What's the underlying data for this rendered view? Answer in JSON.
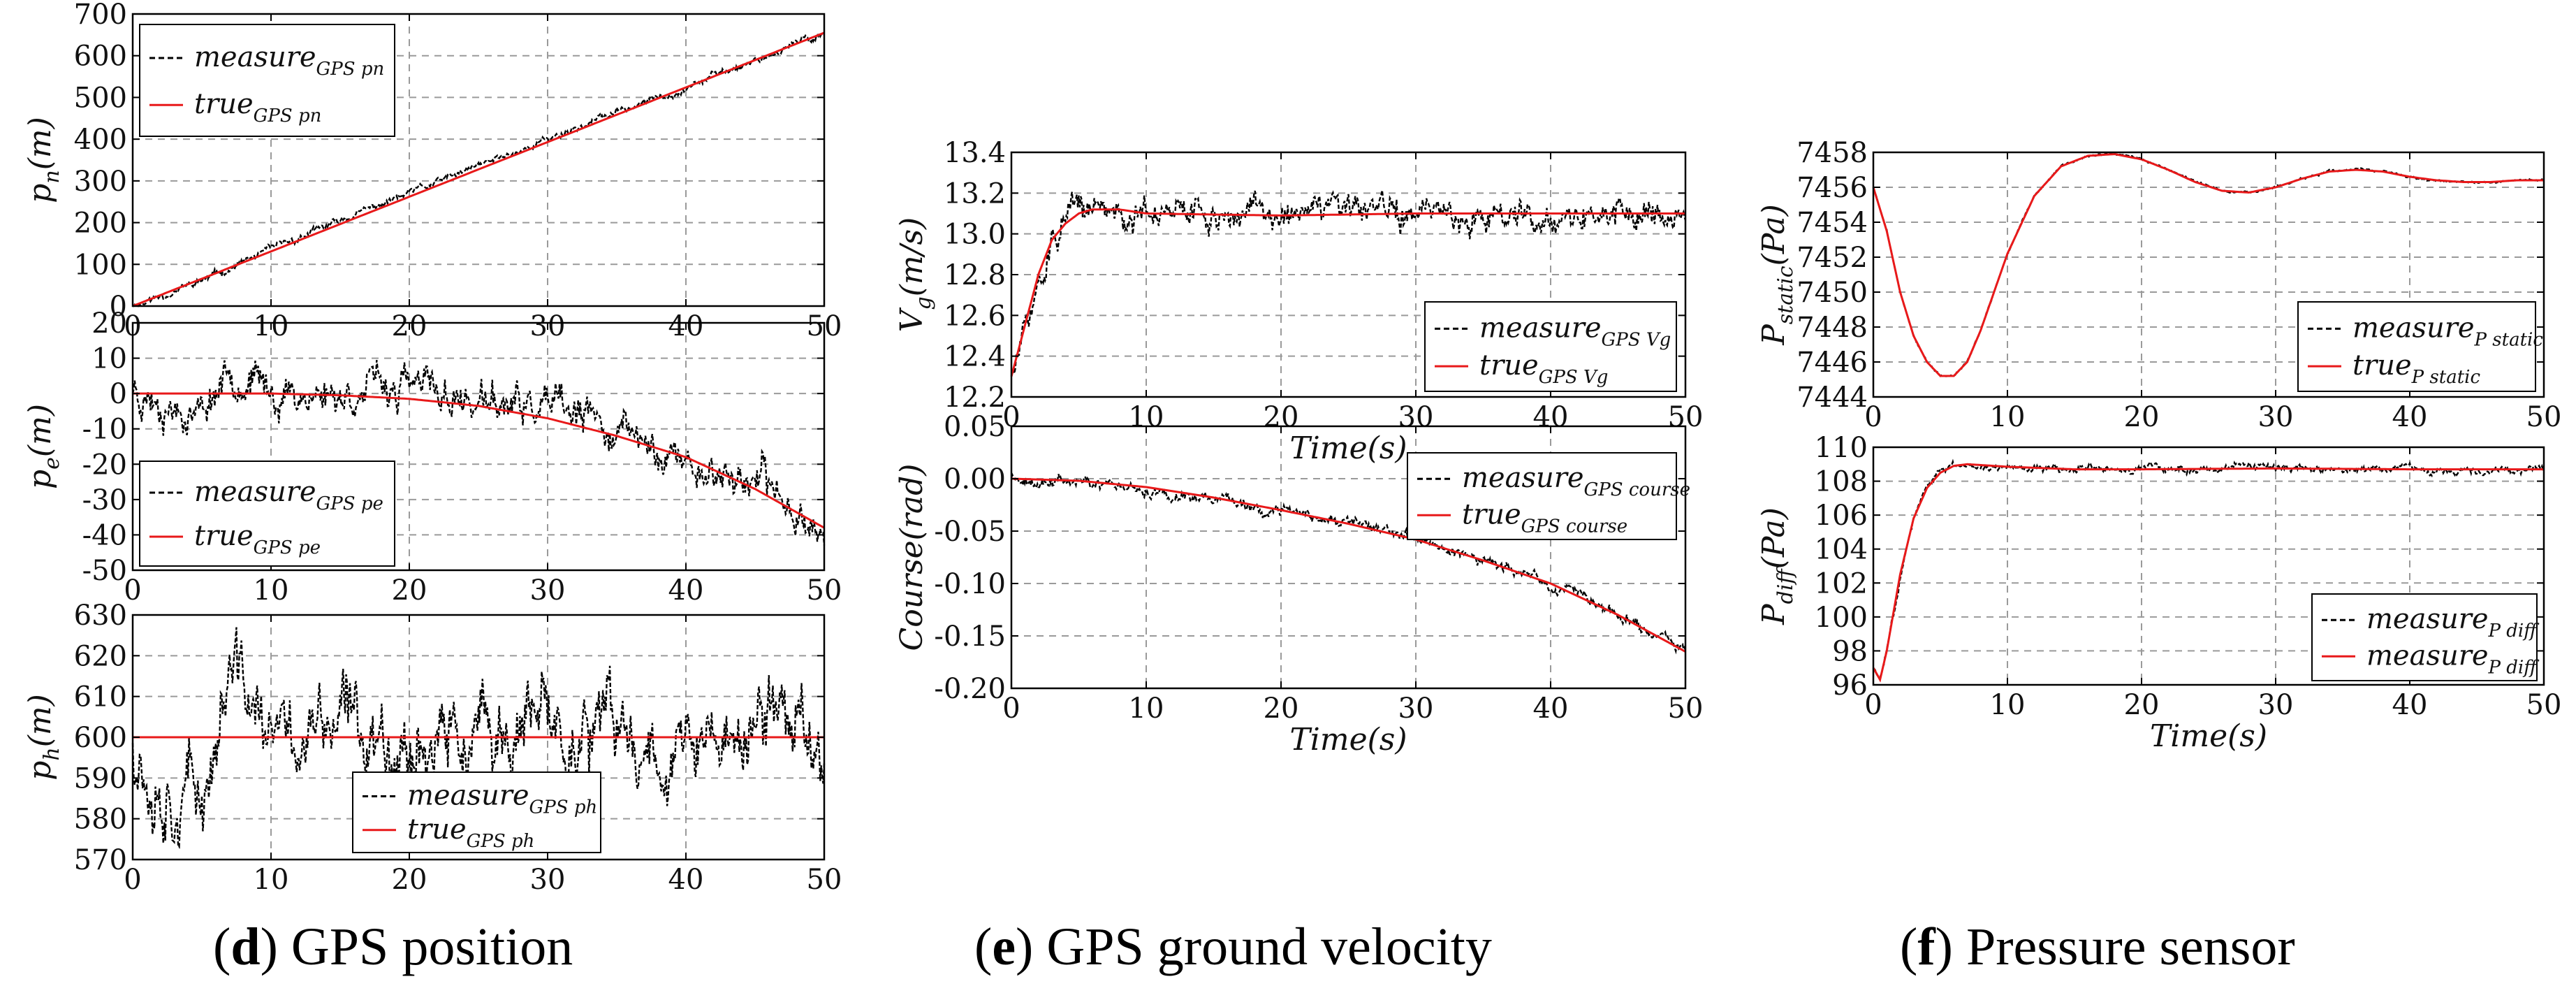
{
  "chart_data": [
    {
      "id": "pn",
      "panel": "d",
      "type": "line",
      "ylabel": "p_n(m)",
      "ylabel_main": "p",
      "ylabel_sub": "n",
      "ylabel_unit": "(m)",
      "xlabel": "",
      "xlim": [
        0,
        50
      ],
      "ylim": [
        0,
        700
      ],
      "xticks": [
        0,
        10,
        20,
        30,
        40,
        50
      ],
      "yticks": [
        0,
        100,
        200,
        300,
        400,
        500,
        600,
        700
      ],
      "grid": true,
      "legend_position": "top-left",
      "series": [
        {
          "name": "measure_GPS_pn",
          "legend_main": "measure",
          "legend_sub": "GPS_pn",
          "style": "dashed",
          "color": "#000000",
          "x": [
            0,
            5,
            10,
            15,
            20,
            25,
            30,
            35,
            40,
            45,
            50
          ],
          "values": [
            0,
            60,
            135,
            205,
            270,
            335,
            400,
            465,
            525,
            590,
            655
          ],
          "noise": 8,
          "seed": 11
        },
        {
          "name": "true_GPS_pn",
          "legend_main": "true",
          "legend_sub": "GPS_pn",
          "style": "solid",
          "color": "#e8191a",
          "x": [
            0,
            50
          ],
          "values": [
            0,
            655
          ]
        }
      ]
    },
    {
      "id": "pe",
      "panel": "d",
      "type": "line",
      "ylabel": "p_e(m)",
      "ylabel_main": "p",
      "ylabel_sub": "e",
      "ylabel_unit": "(m)",
      "xlabel": "",
      "xlim": [
        0,
        50
      ],
      "ylim": [
        -50,
        20
      ],
      "xticks": [
        0,
        10,
        20,
        30,
        40,
        50
      ],
      "yticks": [
        -50,
        -40,
        -30,
        -20,
        -10,
        0,
        10,
        20
      ],
      "grid": true,
      "legend_position": "bottom-left",
      "series": [
        {
          "name": "measure_GPS_pe",
          "legend_main": "measure",
          "legend_sub": "GPS_pe",
          "style": "dashed",
          "color": "#000000",
          "x": [
            0,
            3,
            5,
            7,
            8,
            10,
            15,
            20,
            25,
            30,
            35,
            40,
            45,
            48,
            50
          ],
          "values": [
            2,
            -3,
            -5,
            8,
            5,
            0,
            0,
            2,
            -3,
            -5,
            -10,
            -20,
            -25,
            -32,
            -40
          ],
          "noise": 5,
          "seed": 23
        },
        {
          "name": "true_GPS_pe",
          "legend_main": "true",
          "legend_sub": "GPS_pe",
          "style": "solid",
          "color": "#e8191a",
          "x": [
            0,
            5,
            10,
            15,
            20,
            25,
            30,
            35,
            40,
            45,
            50
          ],
          "values": [
            0,
            0,
            0,
            -0.5,
            -1.5,
            -3.5,
            -7,
            -12,
            -18,
            -27,
            -38
          ]
        }
      ]
    },
    {
      "id": "ph",
      "panel": "d",
      "type": "line",
      "ylabel": "p_h(m)",
      "ylabel_main": "p",
      "ylabel_sub": "h",
      "ylabel_unit": "(m)",
      "xlabel": "",
      "xlim": [
        0,
        50
      ],
      "ylim": [
        570,
        630
      ],
      "xticks": [
        0,
        10,
        20,
        30,
        40,
        50
      ],
      "yticks": [
        570,
        580,
        590,
        600,
        610,
        620,
        630
      ],
      "grid": true,
      "legend_position": "bottom-center",
      "series": [
        {
          "name": "measure_GPS_ph",
          "legend_main": "measure",
          "legend_sub": "GPS_ph",
          "style": "dashed",
          "color": "#000000",
          "x": [
            0,
            2,
            5,
            7,
            8,
            10,
            15,
            20,
            25,
            30,
            35,
            40,
            45,
            47,
            50
          ],
          "values": [
            600,
            590,
            585,
            615,
            612,
            598,
            603,
            600,
            598,
            602,
            600,
            597,
            600,
            610,
            595
          ],
          "noise": 9,
          "seed": 37
        },
        {
          "name": "true_GPS_ph",
          "legend_main": "true",
          "legend_sub": "GPS_ph",
          "style": "solid",
          "color": "#e8191a",
          "x": [
            0,
            50
          ],
          "values": [
            600,
            600
          ]
        }
      ]
    },
    {
      "id": "vg",
      "panel": "e",
      "type": "line",
      "ylabel": "V_g(m/s)",
      "ylabel_main": "V",
      "ylabel_sub": "g",
      "ylabel_unit": "(m/s)",
      "xlabel": "Time(s)",
      "xlim": [
        0,
        50
      ],
      "ylim": [
        12.2,
        13.4
      ],
      "xticks": [
        0,
        10,
        20,
        30,
        40,
        50
      ],
      "yticks": [
        12.2,
        12.4,
        12.6,
        12.8,
        13.0,
        13.2,
        13.4
      ],
      "grid": true,
      "legend_position": "bottom-right",
      "series": [
        {
          "name": "measure_GPS_Vg",
          "legend_main": "measure",
          "legend_sub": "GPS_Vg",
          "style": "dashed",
          "color": "#000000",
          "x": [
            0,
            1,
            2,
            3,
            4,
            5,
            6,
            8,
            10,
            20,
            30,
            40,
            50
          ],
          "values": [
            12.3,
            12.5,
            12.75,
            12.95,
            13.05,
            13.1,
            13.12,
            13.12,
            13.1,
            13.1,
            13.1,
            13.1,
            13.1
          ],
          "noise": 0.07,
          "seed": 51
        },
        {
          "name": "true_GPS_Vg",
          "legend_main": "true",
          "legend_sub": "GPS_Vg",
          "style": "solid",
          "color": "#e8191a",
          "x": [
            0,
            1,
            2,
            3,
            4,
            5,
            6,
            8,
            10,
            20,
            30,
            40,
            50
          ],
          "values": [
            12.3,
            12.55,
            12.8,
            12.97,
            13.05,
            13.1,
            13.12,
            13.12,
            13.1,
            13.09,
            13.1,
            13.1,
            13.1
          ]
        }
      ]
    },
    {
      "id": "course",
      "panel": "e",
      "type": "line",
      "ylabel": "Course(rad)",
      "ylabel_main": "Course",
      "ylabel_sub": "",
      "ylabel_unit": "(rad)",
      "xlabel": "Time(s)",
      "xlim": [
        0,
        50
      ],
      "ylim": [
        -0.2,
        0.05
      ],
      "xticks": [
        0,
        10,
        20,
        30,
        40,
        50
      ],
      "yticks": [
        -0.2,
        -0.15,
        -0.1,
        -0.05,
        0.0,
        0.05
      ],
      "grid": true,
      "legend_position": "top-right",
      "series": [
        {
          "name": "measure_GPS_course",
          "legend_main": "measure",
          "legend_sub": "GPS_course",
          "style": "dashed",
          "color": "#000000",
          "x": [
            0,
            5,
            10,
            15,
            20,
            25,
            30,
            35,
            40,
            45,
            50
          ],
          "values": [
            0,
            -0.002,
            -0.008,
            -0.018,
            -0.03,
            -0.043,
            -0.058,
            -0.078,
            -0.1,
            -0.13,
            -0.165
          ],
          "noise": 0.005,
          "seed": 63
        },
        {
          "name": "true_GPS_course",
          "legend_main": "true",
          "legend_sub": "GPS_course",
          "style": "solid",
          "color": "#e8191a",
          "x": [
            0,
            5,
            10,
            15,
            20,
            25,
            30,
            35,
            40,
            45,
            50
          ],
          "values": [
            0,
            -0.002,
            -0.008,
            -0.018,
            -0.03,
            -0.043,
            -0.058,
            -0.078,
            -0.1,
            -0.13,
            -0.165
          ]
        }
      ]
    },
    {
      "id": "pstatic",
      "panel": "f",
      "type": "line",
      "ylabel": "P_static(Pa)",
      "ylabel_main": "P",
      "ylabel_sub": "static",
      "ylabel_unit": "(Pa)",
      "xlabel": "",
      "xlim": [
        0,
        50
      ],
      "ylim": [
        7444,
        7458
      ],
      "xticks": [
        0,
        10,
        20,
        30,
        40,
        50
      ],
      "yticks": [
        7444,
        7446,
        7448,
        7450,
        7452,
        7454,
        7456,
        7458
      ],
      "grid": true,
      "legend_position": "bottom-right",
      "series": [
        {
          "name": "measure_P_static",
          "legend_main": "measure",
          "legend_sub": "P_static",
          "style": "dashed",
          "color": "#000000",
          "x": [
            0,
            1,
            2,
            3,
            4,
            5,
            6,
            7,
            8,
            9,
            10,
            12,
            14,
            16,
            18,
            20,
            22,
            24,
            26,
            28,
            30,
            32,
            34,
            36,
            38,
            40,
            42,
            44,
            46,
            48,
            50
          ],
          "values": [
            7456,
            7453.5,
            7450,
            7447.5,
            7446,
            7445.2,
            7445.2,
            7446,
            7447.8,
            7450,
            7452.2,
            7455.5,
            7457.2,
            7457.8,
            7457.9,
            7457.6,
            7457,
            7456.3,
            7455.8,
            7455.7,
            7456,
            7456.5,
            7456.9,
            7457,
            7456.9,
            7456.6,
            7456.4,
            7456.3,
            7456.3,
            7456.4,
            7456.4
          ],
          "noise": 0.06,
          "seed": 71
        },
        {
          "name": "true_P_static",
          "legend_main": "true",
          "legend_sub": "P_static",
          "style": "solid",
          "color": "#e8191a",
          "x": [
            0,
            1,
            2,
            3,
            4,
            5,
            6,
            7,
            8,
            9,
            10,
            12,
            14,
            16,
            18,
            20,
            22,
            24,
            26,
            28,
            30,
            32,
            34,
            36,
            38,
            40,
            42,
            44,
            46,
            48,
            50
          ],
          "values": [
            7456,
            7453.5,
            7450,
            7447.5,
            7446,
            7445.2,
            7445.2,
            7446,
            7447.8,
            7450,
            7452.2,
            7455.5,
            7457.2,
            7457.8,
            7457.9,
            7457.6,
            7457,
            7456.3,
            7455.8,
            7455.7,
            7456,
            7456.5,
            7456.9,
            7457,
            7456.9,
            7456.6,
            7456.4,
            7456.3,
            7456.3,
            7456.4,
            7456.4
          ]
        }
      ]
    },
    {
      "id": "pdiff",
      "panel": "f",
      "type": "line",
      "ylabel": "P_diff(Pa)",
      "ylabel_main": "P",
      "ylabel_sub": "diff",
      "ylabel_unit": "(Pa)",
      "xlabel": "Time(s)",
      "xlim": [
        0,
        50
      ],
      "ylim": [
        96,
        110
      ],
      "xticks": [
        0,
        10,
        20,
        30,
        40,
        50
      ],
      "yticks": [
        96,
        98,
        100,
        102,
        104,
        106,
        108,
        110
      ],
      "grid": true,
      "legend_position": "bottom-right",
      "series": [
        {
          "name": "measure_P_diff",
          "legend_main": "measure",
          "legend_sub": "P_diff",
          "style": "dashed",
          "color": "#000000",
          "x": [
            0,
            0.5,
            1,
            2,
            3,
            4,
            5,
            6,
            7,
            8,
            10,
            15,
            20,
            30,
            40,
            50
          ],
          "values": [
            97,
            96.3,
            98,
            102.5,
            105.8,
            107.6,
            108.5,
            108.9,
            109,
            108.95,
            108.85,
            108.7,
            108.7,
            108.75,
            108.7,
            108.7
          ],
          "noise": 0.2,
          "seed": 83
        },
        {
          "name": "measure_P_diff",
          "legend_main": "measure",
          "legend_sub": "P_diff",
          "style": "solid",
          "color": "#e8191a",
          "x": [
            0,
            0.5,
            1,
            2,
            3,
            4,
            5,
            6,
            7,
            8,
            10,
            15,
            20,
            30,
            40,
            50
          ],
          "values": [
            97,
            96.3,
            98,
            102.5,
            105.8,
            107.6,
            108.5,
            108.9,
            109,
            108.95,
            108.85,
            108.7,
            108.7,
            108.75,
            108.7,
            108.7
          ]
        }
      ]
    }
  ],
  "captions": [
    {
      "letter": "d",
      "text": "GPS position",
      "open": "(",
      "close": ")"
    },
    {
      "letter": "e",
      "text": "GPS ground velocity",
      "open": "(",
      "close": ")"
    },
    {
      "letter": "f",
      "text": "Pressure sensor",
      "open": "(",
      "close": ")"
    }
  ]
}
